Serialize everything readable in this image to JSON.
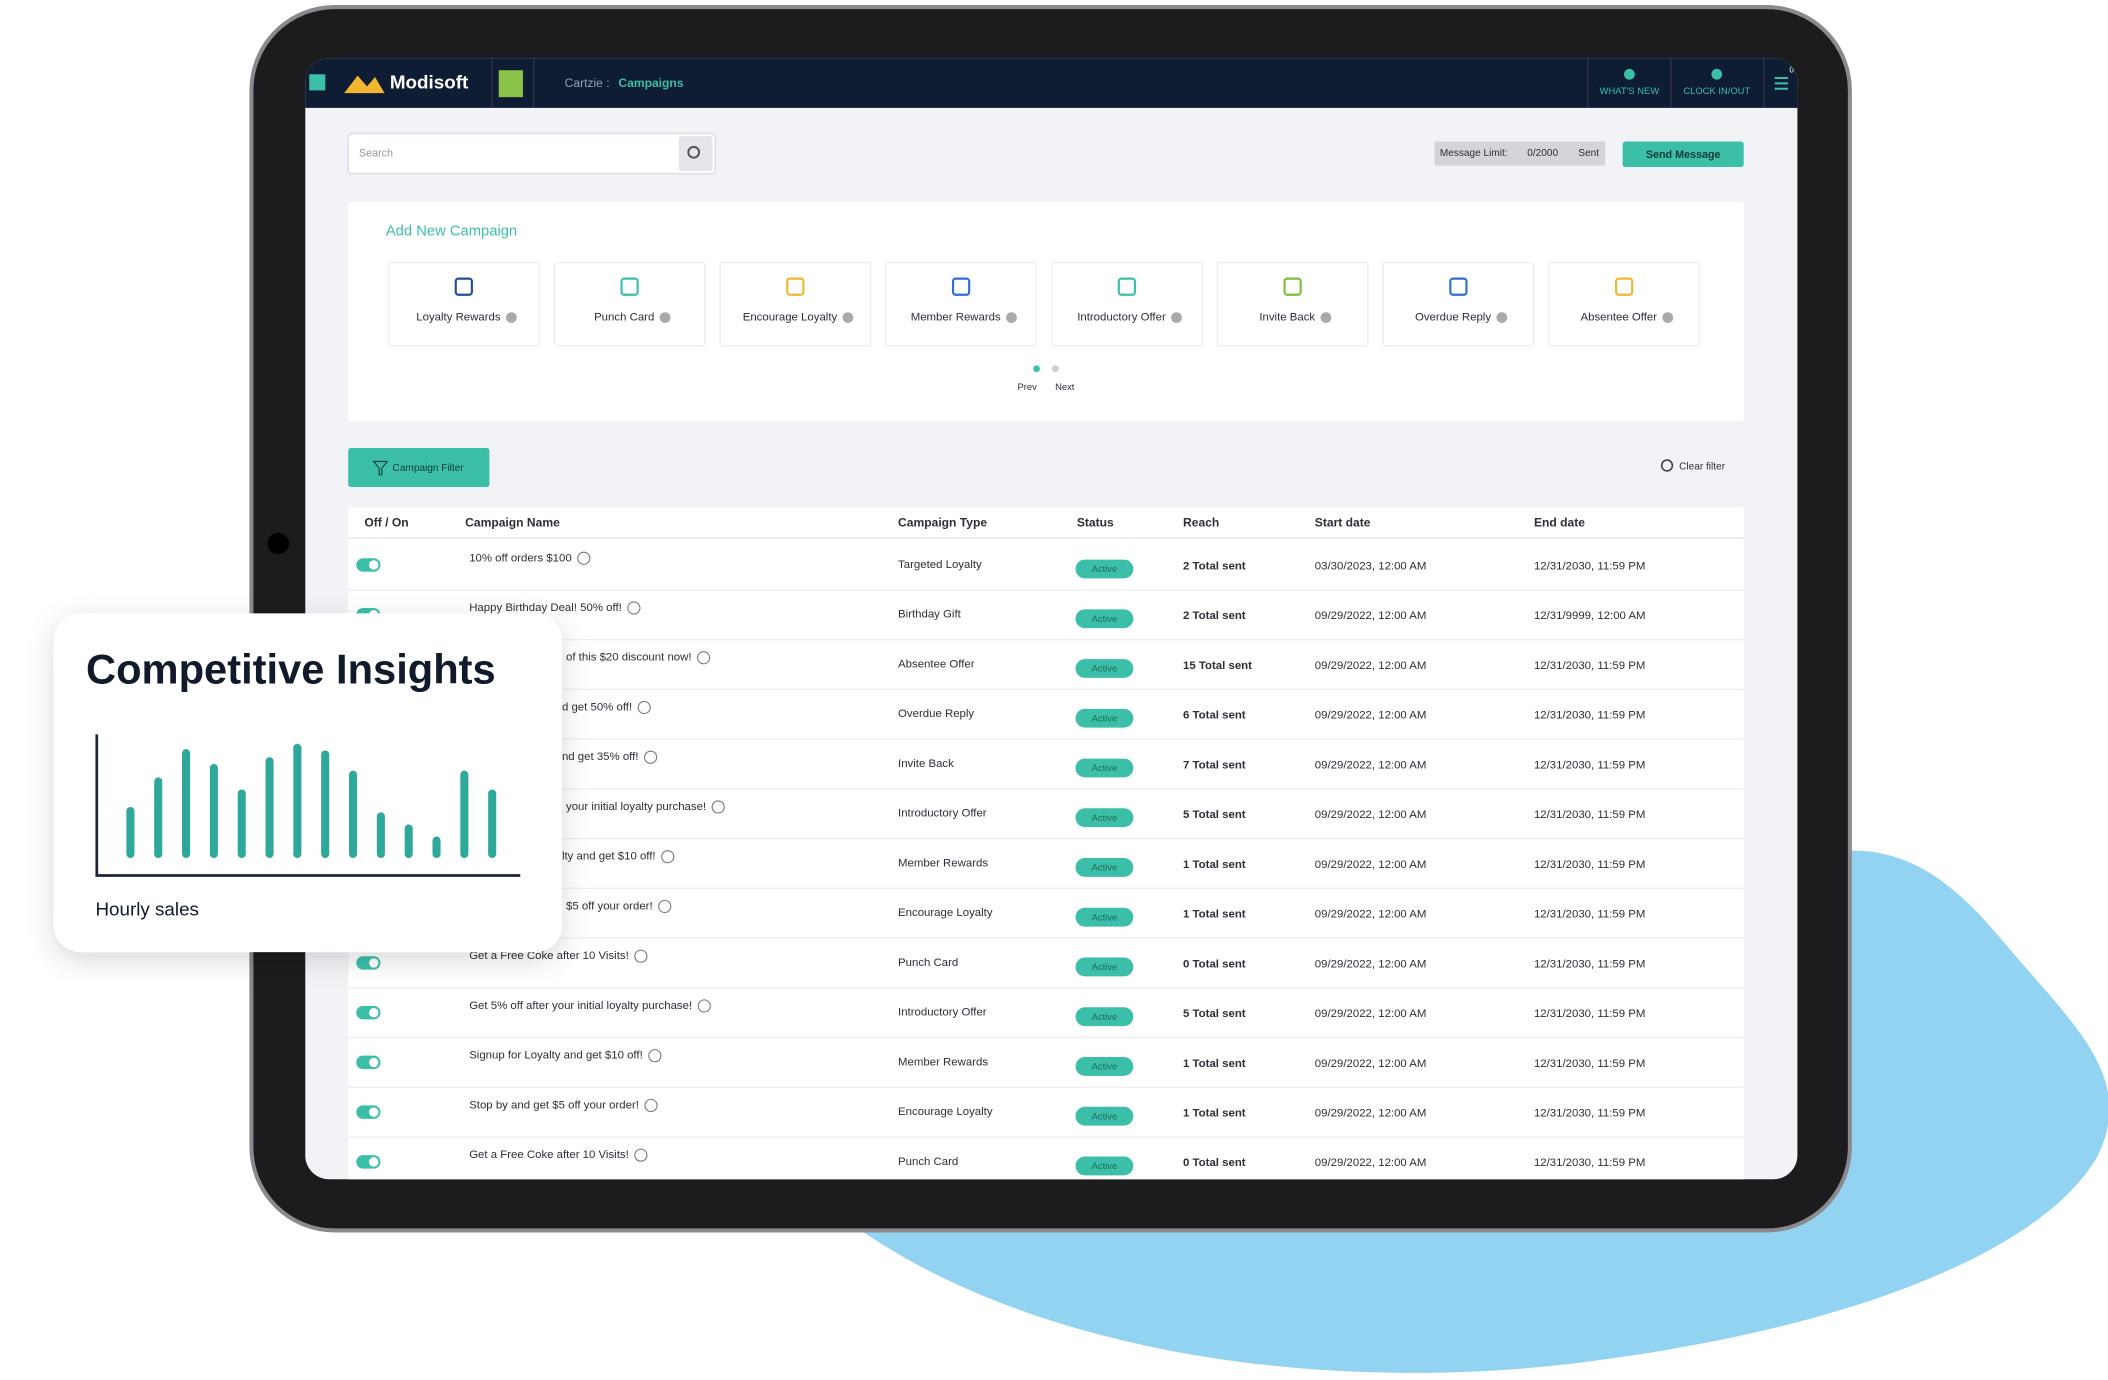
{
  "header": {
    "app_name": "Modisoft",
    "breadcrumb": "Cartzie :",
    "page": "Campaigns",
    "nav": [
      "WHAT'S NEW",
      "CLOCK IN/OUT"
    ],
    "notification_count": "0"
  },
  "toolbar": {
    "search_placeholder": "Search",
    "message_limit_label": "Message Limit:",
    "message_count": "0/2000",
    "message_unit": "Sent",
    "send_button": "Send Message"
  },
  "add_campaign": {
    "title": "Add New Campaign",
    "types": [
      "Loyalty Rewards",
      "Punch Card",
      "Encourage Loyalty",
      "Member Rewards",
      "Introductory Offer",
      "Invite Back",
      "Overdue Reply",
      "Absentee Offer"
    ],
    "prev": "Prev",
    "next": "Next"
  },
  "filter_button": "Campaign Filter",
  "clear_filter": "Clear filter",
  "table": {
    "columns": [
      "Off / On",
      "Campaign Name",
      "Campaign Type",
      "Status",
      "Reach",
      "Start date",
      "End date"
    ],
    "rows": [
      [
        "10% off orders $100",
        "Targeted Loyalty",
        "Active",
        "2 Total sent",
        "03/30/2023, 12:00 AM",
        "12/31/2030, 11:59 PM"
      ],
      [
        "Happy Birthday Deal! 50% off!",
        "Birthday Gift",
        "Active",
        "2 Total sent",
        "09/29/2022, 12:00 AM",
        "12/31/9999, 12:00 AM"
      ],
      [
        "of this $20 discount now!",
        "Absentee Offer",
        "Active",
        "15 Total sent",
        "09/29/2022, 12:00 AM",
        "12/31/2030, 11:59 PM"
      ],
      [
        "d get 50% off!",
        "Overdue Reply",
        "Active",
        "6 Total sent",
        "09/29/2022, 12:00 AM",
        "12/31/2030, 11:59 PM"
      ],
      [
        "nd get 35% off!",
        "Invite Back",
        "Active",
        "7 Total sent",
        "09/29/2022, 12:00 AM",
        "12/31/2030, 11:59 PM"
      ],
      [
        "your initial loyalty purchase!",
        "Introductory Offer",
        "Active",
        "5 Total sent",
        "09/29/2022, 12:00 AM",
        "12/31/2030, 11:59 PM"
      ],
      [
        "lty and get $10 off!",
        "Member Rewards",
        "Active",
        "1 Total sent",
        "09/29/2022, 12:00 AM",
        "12/31/2030, 11:59 PM"
      ],
      [
        "$5 off your order!",
        "Encourage Loyalty",
        "Active",
        "1 Total sent",
        "09/29/2022, 12:00 AM",
        "12/31/2030, 11:59 PM"
      ],
      [
        "Get a Free Coke after 10 Visits!",
        "Punch Card",
        "Active",
        "0 Total sent",
        "09/29/2022, 12:00 AM",
        "12/31/2030, 11:59 PM"
      ],
      [
        "Get 5% off after your initial loyalty purchase!",
        "Introductory Offer",
        "Active",
        "5 Total sent",
        "09/29/2022, 12:00 AM",
        "12/31/2030, 11:59 PM"
      ],
      [
        "Signup for Loyalty and get $10 off!",
        "Member Rewards",
        "Active",
        "1 Total sent",
        "09/29/2022, 12:00 AM",
        "12/31/2030, 11:59 PM"
      ],
      [
        "Stop by and get $5 off your order!",
        "Encourage Loyalty",
        "Active",
        "1 Total sent",
        "09/29/2022, 12:00 AM",
        "12/31/2030, 11:59 PM"
      ],
      [
        "Get a Free Coke after 10 Visits!",
        "Punch Card",
        "Active",
        "0 Total sent",
        "09/29/2022, 12:00 AM",
        "12/31/2030, 11:59 PM"
      ]
    ]
  },
  "insight_card": {
    "title": "Competitive Insights",
    "caption": "Hourly sales",
    "bars": [
      38,
      60,
      81,
      70,
      51,
      75,
      85,
      80,
      65,
      34,
      25,
      16,
      65,
      51
    ]
  }
}
